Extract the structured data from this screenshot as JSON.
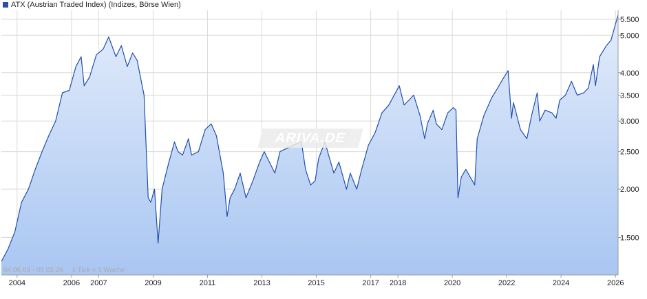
{
  "legend": {
    "label": "ATX (Austrian Traded Index) (Indizes, Börse Wien)",
    "color": "#2a4fa8"
  },
  "meta": {
    "range": "04.06.03 - 05.02.26",
    "tick_info": "1 Tick = 1 Woche"
  },
  "watermark": "ARIVA.DE",
  "colors": {
    "line": "#1f4fae",
    "fill_top": "#e3ecfb",
    "fill_bottom": "#a9c6f1",
    "grid": "#dadada"
  },
  "chart_data": {
    "type": "area",
    "title": "ATX (Austrian Traded Index) (Indizes, Börse Wien)",
    "y_scale": "log",
    "ylim": [
      1200,
      5800
    ],
    "xlim": [
      "2003-06-04",
      "2026-02-05"
    ],
    "y_ticks": [
      {
        "value": 1500,
        "label": "1.500"
      },
      {
        "value": 2000,
        "label": "2.000"
      },
      {
        "value": 2500,
        "label": "2.500"
      },
      {
        "value": 3000,
        "label": "3.000"
      },
      {
        "value": 3500,
        "label": "3.500"
      },
      {
        "value": 4000,
        "label": "4.000"
      },
      {
        "value": 5000,
        "label": "5.000"
      },
      {
        "value": 5500,
        "label": "5.500"
      }
    ],
    "x_ticks": [
      {
        "date": "2004-01-01",
        "label": "2004"
      },
      {
        "date": "2006-01-01",
        "label": "2006"
      },
      {
        "date": "2007-01-01",
        "label": "2007"
      },
      {
        "date": "2009-01-01",
        "label": "2009"
      },
      {
        "date": "2011-01-01",
        "label": "2011"
      },
      {
        "date": "2013-01-01",
        "label": "2013"
      },
      {
        "date": "2015-01-01",
        "label": "2015"
      },
      {
        "date": "2017-01-01",
        "label": "2017"
      },
      {
        "date": "2018-01-01",
        "label": "2018"
      },
      {
        "date": "2020-01-01",
        "label": "2020"
      },
      {
        "date": "2022-01-01",
        "label": "2022"
      },
      {
        "date": "2024-01-01",
        "label": "2024"
      },
      {
        "date": "2026-01-01",
        "label": "2026"
      }
    ],
    "series": [
      {
        "points": [
          [
            "2003-06-04",
            1300
          ],
          [
            "2003-09-01",
            1400
          ],
          [
            "2003-12-01",
            1550
          ],
          [
            "2004-03-01",
            1850
          ],
          [
            "2004-06-01",
            2000
          ],
          [
            "2004-09-01",
            2250
          ],
          [
            "2004-12-01",
            2500
          ],
          [
            "2005-03-01",
            2750
          ],
          [
            "2005-06-01",
            3000
          ],
          [
            "2005-09-01",
            3550
          ],
          [
            "2005-12-01",
            3600
          ],
          [
            "2006-03-01",
            4150
          ],
          [
            "2006-05-10",
            4400
          ],
          [
            "2006-06-20",
            3700
          ],
          [
            "2006-09-01",
            3900
          ],
          [
            "2006-12-01",
            4450
          ],
          [
            "2007-03-01",
            4600
          ],
          [
            "2007-05-15",
            4950
          ],
          [
            "2007-08-20",
            4400
          ],
          [
            "2007-11-01",
            4700
          ],
          [
            "2008-01-20",
            4150
          ],
          [
            "2008-04-01",
            4500
          ],
          [
            "2008-06-01",
            4300
          ],
          [
            "2008-09-01",
            3500
          ],
          [
            "2008-10-27",
            1900
          ],
          [
            "2008-12-01",
            1850
          ],
          [
            "2009-01-20",
            2000
          ],
          [
            "2009-03-09",
            1450
          ],
          [
            "2009-05-01",
            2000
          ],
          [
            "2009-08-01",
            2350
          ],
          [
            "2009-10-15",
            2650
          ],
          [
            "2009-12-01",
            2500
          ],
          [
            "2010-02-01",
            2450
          ],
          [
            "2010-04-20",
            2700
          ],
          [
            "2010-06-01",
            2450
          ],
          [
            "2010-09-01",
            2500
          ],
          [
            "2010-12-01",
            2850
          ],
          [
            "2011-02-20",
            2950
          ],
          [
            "2011-05-01",
            2750
          ],
          [
            "2011-08-01",
            2200
          ],
          [
            "2011-09-22",
            1700
          ],
          [
            "2011-11-01",
            1900
          ],
          [
            "2012-01-01",
            2000
          ],
          [
            "2012-03-15",
            2200
          ],
          [
            "2012-06-01",
            1900
          ],
          [
            "2012-09-01",
            2100
          ],
          [
            "2012-12-01",
            2350
          ],
          [
            "2013-02-01",
            2500
          ],
          [
            "2013-06-24",
            2200
          ],
          [
            "2013-09-01",
            2500
          ],
          [
            "2013-12-01",
            2550
          ],
          [
            "2014-03-01",
            2600
          ],
          [
            "2014-06-15",
            2650
          ],
          [
            "2014-08-10",
            2250
          ],
          [
            "2014-10-16",
            2050
          ],
          [
            "2014-12-16",
            2100
          ],
          [
            "2015-02-01",
            2400
          ],
          [
            "2015-04-27",
            2650
          ],
          [
            "2015-06-15",
            2450
          ],
          [
            "2015-08-25",
            2200
          ],
          [
            "2015-11-01",
            2350
          ],
          [
            "2016-02-11",
            2000
          ],
          [
            "2016-04-01",
            2200
          ],
          [
            "2016-06-27",
            2000
          ],
          [
            "2016-09-01",
            2250
          ],
          [
            "2016-12-01",
            2600
          ],
          [
            "2017-03-01",
            2800
          ],
          [
            "2017-06-01",
            3150
          ],
          [
            "2017-09-01",
            3300
          ],
          [
            "2018-01-20",
            3700
          ],
          [
            "2018-03-25",
            3300
          ],
          [
            "2018-06-01",
            3400
          ],
          [
            "2018-08-01",
            3500
          ],
          [
            "2018-10-25",
            3100
          ],
          [
            "2018-12-27",
            2700
          ],
          [
            "2019-02-01",
            2950
          ],
          [
            "2019-04-20",
            3200
          ],
          [
            "2019-06-01",
            2950
          ],
          [
            "2019-08-15",
            2850
          ],
          [
            "2019-11-01",
            3150
          ],
          [
            "2020-01-15",
            3250
          ],
          [
            "2020-02-20",
            3200
          ],
          [
            "2020-03-18",
            1900
          ],
          [
            "2020-05-01",
            2150
          ],
          [
            "2020-07-01",
            2250
          ],
          [
            "2020-10-29",
            2050
          ],
          [
            "2020-12-01",
            2700
          ],
          [
            "2021-03-01",
            3100
          ],
          [
            "2021-06-15",
            3450
          ],
          [
            "2021-09-01",
            3650
          ],
          [
            "2021-11-10",
            3850
          ],
          [
            "2022-01-20",
            4050
          ],
          [
            "2022-03-07",
            3050
          ],
          [
            "2022-04-01",
            3350
          ],
          [
            "2022-07-05",
            2850
          ],
          [
            "2022-09-29",
            2700
          ],
          [
            "2022-12-01",
            3100
          ],
          [
            "2023-02-15",
            3550
          ],
          [
            "2023-03-20",
            3000
          ],
          [
            "2023-06-01",
            3200
          ],
          [
            "2023-09-01",
            3150
          ],
          [
            "2023-10-26",
            3050
          ],
          [
            "2023-12-15",
            3400
          ],
          [
            "2024-03-01",
            3500
          ],
          [
            "2024-05-20",
            3800
          ],
          [
            "2024-08-05",
            3500
          ],
          [
            "2024-11-01",
            3550
          ],
          [
            "2025-01-01",
            3650
          ],
          [
            "2025-03-10",
            4200
          ],
          [
            "2025-04-07",
            3700
          ],
          [
            "2025-06-01",
            4400
          ],
          [
            "2025-09-01",
            4700
          ],
          [
            "2025-11-01",
            4850
          ],
          [
            "2025-12-15",
            5200
          ],
          [
            "2026-02-05",
            5650
          ]
        ]
      }
    ]
  }
}
